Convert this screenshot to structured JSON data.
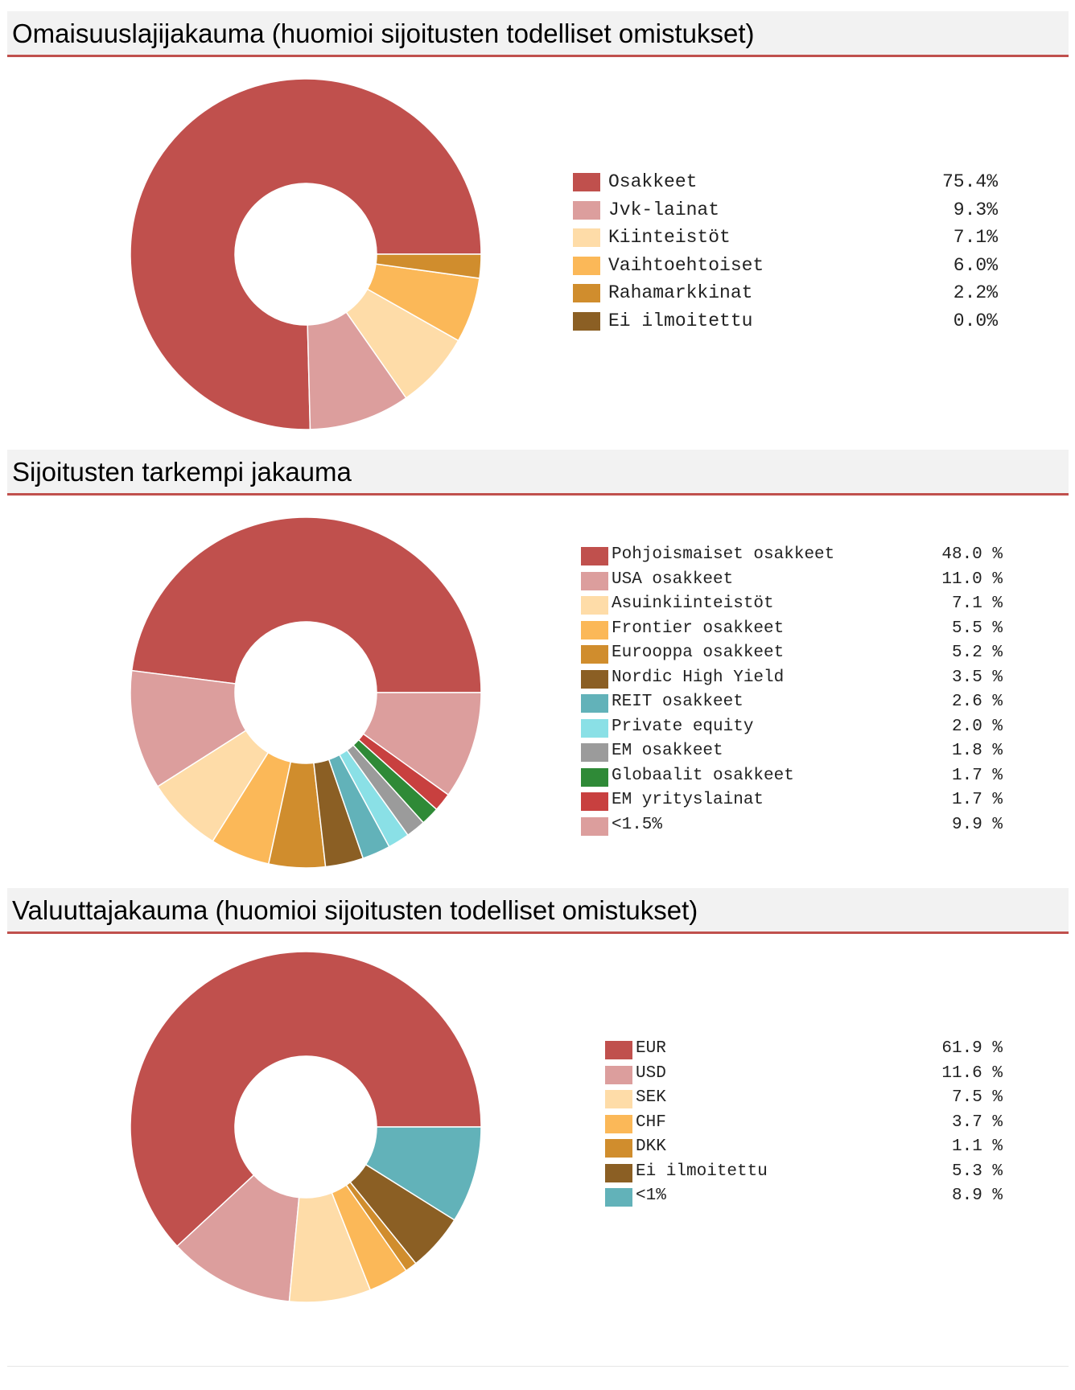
{
  "sections": [
    {
      "title": "Omaisuuslajijakauma (huomioi sijoitusten todelliset omistukset)",
      "chart_data": {
        "type": "pie",
        "style": "donut",
        "title": "Omaisuuslajijakauma (huomioi sijoitusten todelliset omistukset)",
        "categories": [
          "Osakkeet",
          "Jvk-lainat",
          "Kiinteistöt",
          "Vaihtoehtoiset",
          "Rahamarkkinat",
          "Ei ilmoitettu"
        ],
        "values": [
          75.4,
          9.3,
          7.1,
          6.0,
          2.2,
          0.0
        ],
        "value_labels": [
          "75.4%",
          "9.3%",
          "7.1%",
          "6.0%",
          "2.2%",
          "0.0%"
        ],
        "colors": [
          "#c0504d",
          "#dc9e9d",
          "#fedca8",
          "#fbb858",
          "#d08d2d",
          "#8b5f24"
        ],
        "legend": "right"
      }
    },
    {
      "title": "Sijoitusten tarkempi jakauma",
      "chart_data": {
        "type": "pie",
        "style": "donut",
        "title": "Sijoitusten tarkempi jakauma",
        "categories": [
          "Pohjoismaiset osakkeet",
          "USA osakkeet",
          "Asuinkiinteistöt",
          "Frontier osakkeet",
          "Eurooppa osakkeet",
          "Nordic High Yield",
          "REIT osakkeet",
          "Private equity",
          "EM osakkeet",
          "Globaalit osakkeet",
          "EM yrityslainat",
          "<1.5%"
        ],
        "values": [
          48.0,
          11.0,
          7.1,
          5.5,
          5.2,
          3.5,
          2.6,
          2.0,
          1.8,
          1.7,
          1.7,
          9.9
        ],
        "value_labels": [
          "48.0 %",
          "11.0 %",
          "7.1 %",
          "5.5 %",
          "5.2 %",
          "3.5 %",
          "2.6 %",
          "2.0 %",
          "1.8 %",
          "1.7 %",
          "1.7 %",
          "9.9 %"
        ],
        "colors": [
          "#c0504d",
          "#dc9e9d",
          "#fedca8",
          "#fbb858",
          "#d08d2d",
          "#8b5f24",
          "#62b2b9",
          "#8ae0e6",
          "#9b9b9b",
          "#2f8a37",
          "#c8403f",
          "#dc9e9d"
        ],
        "legend": "right"
      }
    },
    {
      "title": "Valuuttajakauma (huomioi sijoitusten todelliset omistukset)",
      "chart_data": {
        "type": "pie",
        "style": "donut",
        "title": "Valuuttajakauma (huomioi sijoitusten todelliset omistukset)",
        "categories": [
          "EUR",
          "USD",
          "SEK",
          "CHF",
          "DKK",
          "Ei ilmoitettu",
          "<1%"
        ],
        "values": [
          61.9,
          11.6,
          7.5,
          3.7,
          1.1,
          5.3,
          8.9
        ],
        "value_labels": [
          "61.9 %",
          "11.6 %",
          "7.5 %",
          "3.7 %",
          "1.1 %",
          "5.3 %",
          "8.9 %"
        ],
        "colors": [
          "#c0504d",
          "#dc9e9d",
          "#fedca8",
          "#fbb858",
          "#d08d2d",
          "#8b5f24",
          "#62b2b9"
        ],
        "legend": "right"
      }
    }
  ]
}
